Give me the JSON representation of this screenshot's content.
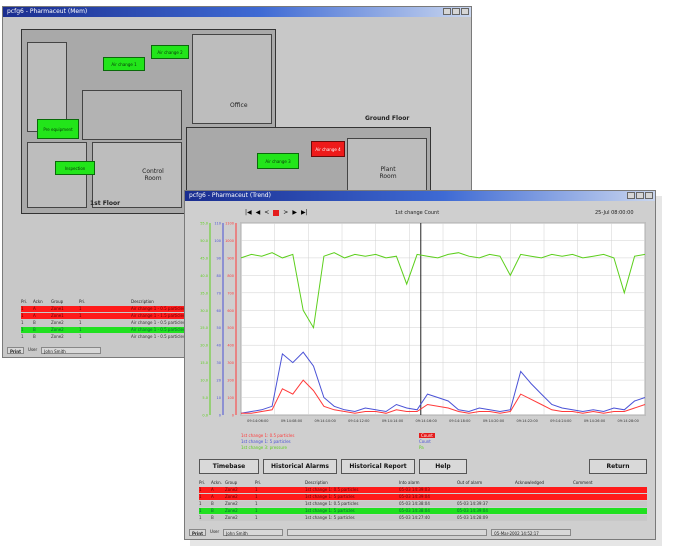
{
  "back_window": {
    "title": "pcfg6 - Pharmaceut (Mem)",
    "floor_labels": {
      "upper": "1st Floor",
      "ground": "Ground Floor"
    },
    "room_labels": {
      "office": "Office",
      "control_room": "Control Room",
      "plant_room": "Plant Room"
    },
    "sensors": [
      {
        "label": "Air change 1",
        "state": "ok"
      },
      {
        "label": "Air change 2",
        "state": "ok"
      },
      {
        "label": "Pre equipment",
        "state": "ok"
      },
      {
        "label": "Inspection",
        "state": "ok"
      },
      {
        "label": "Air change 3",
        "state": "ok"
      },
      {
        "label": "Air change 4",
        "state": "alarm"
      }
    ],
    "table_headers": [
      "Pri.",
      "Ackn",
      "Group",
      "Pri.",
      "Description"
    ],
    "rows": [
      {
        "state": "red",
        "cells": [
          "1",
          "A",
          "Zone1",
          "1",
          "Air change 1 - 0.5 particles"
        ]
      },
      {
        "state": "red",
        "cells": [
          "1",
          "A",
          "Zone1",
          "1",
          "Air change 1 - 1.5 particles"
        ]
      },
      {
        "state": "plain",
        "cells": [
          "1",
          "B",
          "Zone2",
          "1",
          "Air change 1 - 0.5 particles"
        ]
      },
      {
        "state": "green",
        "cells": [
          "1",
          "B",
          "Zone2",
          "1",
          "Air change 1 - 0.5 particles"
        ]
      },
      {
        "state": "plain",
        "cells": [
          "1",
          "B",
          "Zone2",
          "1",
          "Air change 1 - 0.5 particles"
        ]
      }
    ],
    "status": {
      "print": "Print",
      "user_label": "User",
      "user": "John Smith"
    }
  },
  "front_window": {
    "title": "pcfg6 - Pharmaceut (Trend)",
    "nav": {
      "prev_far": "|◀",
      "prev": "◀",
      "back": "<",
      "next": ">",
      "next_far": "▶",
      "end": "▶|"
    },
    "chart_title": "1st change Count",
    "timestamp": "25-Jul 08:00:00",
    "legend": [
      {
        "text": "1st change 1: 0.5 particles",
        "color": "#ff3a3a"
      },
      {
        "text": "1st change 1: 5 particles",
        "color": "#4a52d6"
      },
      {
        "text": "1st change 3: pressure",
        "color": "#5ccf1c"
      }
    ],
    "legend_units": [
      "Count",
      "Count",
      "Pa"
    ],
    "buttons": {
      "timebase": "Timebase",
      "historical_alarms": "Historical Alarms",
      "historical_report": "Historical Report",
      "help": "Help",
      "return": "Return"
    },
    "table_headers": [
      "Pri.",
      "Ackn.",
      "Group",
      "Pri.",
      "Description",
      "Into alarm",
      "Out of alarm",
      "Acknowledged",
      "Comment"
    ],
    "rows": [
      {
        "state": "red",
        "cells": [
          "1",
          "A",
          "Zone2",
          "1",
          "1st change 1: 0.5 particles",
          "05-03 14:39:03",
          "",
          "",
          ""
        ]
      },
      {
        "state": "red",
        "cells": [
          "1",
          "A",
          "Zone2",
          "1",
          "1st change 1: 5 particles",
          "05-03 14:39:04",
          "",
          "",
          ""
        ]
      },
      {
        "state": "plain",
        "cells": [
          "1",
          "B",
          "Zone2",
          "1",
          "1st change 1: 0.5 particles",
          "05-03 14:38:04",
          "05-03 14:39:37",
          "",
          ""
        ]
      },
      {
        "state": "green",
        "cells": [
          "1",
          "B",
          "Zone2",
          "1",
          "1st change 1: 5 particles",
          "05-03 14:38:04",
          "05-03 14:39:04",
          "",
          ""
        ]
      },
      {
        "state": "plain",
        "cells": [
          "1",
          "B",
          "Zone2",
          "1",
          "1st change 1: 5 particles",
          "05-03 14:27:40",
          "05-03 14:28:09",
          "",
          ""
        ]
      }
    ],
    "status": {
      "print": "Print",
      "user_label": "User",
      "user": "John Smith",
      "datetime": "05-Mar-2002 14:52:17"
    }
  },
  "chart_data": {
    "type": "line",
    "title": "1st change Count",
    "xlabel": "",
    "ylabel": "",
    "x_ticks": [
      "09:14:06:00",
      "09:14:08:00",
      "09:14:10:00",
      "09:14:12:00",
      "09:14:14:00",
      "09:14:16:00",
      "09:14:18:00",
      "09:14:20:00",
      "09:14:22:00",
      "09:14:24:00",
      "09:14:26:00",
      "09:14:28:00"
    ],
    "y_axes": [
      {
        "color": "#5ccf1c",
        "ticks": [
          "55.0",
          "50.0",
          "45.0",
          "40.0",
          "35.0",
          "30.0",
          "25.0",
          "20.0",
          "15.0",
          "10.0",
          "5.0",
          "0.0"
        ]
      },
      {
        "color": "#4a52d6",
        "ticks": [
          "110",
          "100",
          "90",
          "80",
          "70",
          "60",
          "50",
          "40",
          "30",
          "20",
          "10",
          "0"
        ]
      },
      {
        "color": "#ff3a3a",
        "ticks": [
          "1100",
          "1000",
          "900",
          "800",
          "700",
          "600",
          "500",
          "400",
          "300",
          "200",
          "100",
          "0"
        ]
      }
    ],
    "ylim": [
      0,
      11
    ],
    "grid": true,
    "series": [
      {
        "name": "1st change 3: pressure",
        "color": "#5ccf1c",
        "values": [
          9.0,
          9.2,
          9.1,
          9.3,
          9.0,
          9.2,
          6.0,
          5.0,
          9.1,
          9.3,
          9.0,
          9.2,
          9.1,
          9.2,
          9.0,
          9.1,
          7.5,
          9.2,
          9.1,
          9.0,
          9.2,
          9.3,
          9.1,
          9.0,
          9.2,
          9.1,
          8.0,
          9.2,
          9.1,
          9.0,
          9.2,
          9.1,
          9.2,
          9.0,
          9.1,
          9.2,
          9.0,
          7.0,
          9.1,
          9.2
        ]
      },
      {
        "name": "1st change 1: 5 particles",
        "color": "#4a52d6",
        "values": [
          0.1,
          0.2,
          0.3,
          0.5,
          3.5,
          3.0,
          3.6,
          2.8,
          1.0,
          0.5,
          0.3,
          0.2,
          0.4,
          0.3,
          0.2,
          0.6,
          0.4,
          0.3,
          1.2,
          1.0,
          0.8,
          0.3,
          0.2,
          0.4,
          0.3,
          0.2,
          0.3,
          2.5,
          1.8,
          1.2,
          0.6,
          0.4,
          0.3,
          0.2,
          0.3,
          0.2,
          0.4,
          0.3,
          0.8,
          1.0
        ]
      },
      {
        "name": "1st change 1: 0.5 particles",
        "color": "#ff3a3a",
        "values": [
          0.1,
          0.1,
          0.2,
          0.3,
          1.5,
          1.2,
          2.0,
          1.4,
          0.5,
          0.3,
          0.2,
          0.1,
          0.2,
          0.2,
          0.1,
          0.3,
          0.2,
          0.2,
          0.6,
          0.5,
          0.4,
          0.2,
          0.1,
          0.2,
          0.2,
          0.1,
          0.2,
          1.2,
          0.9,
          0.6,
          0.3,
          0.2,
          0.2,
          0.1,
          0.2,
          0.1,
          0.2,
          0.2,
          0.4,
          0.6
        ]
      }
    ]
  }
}
